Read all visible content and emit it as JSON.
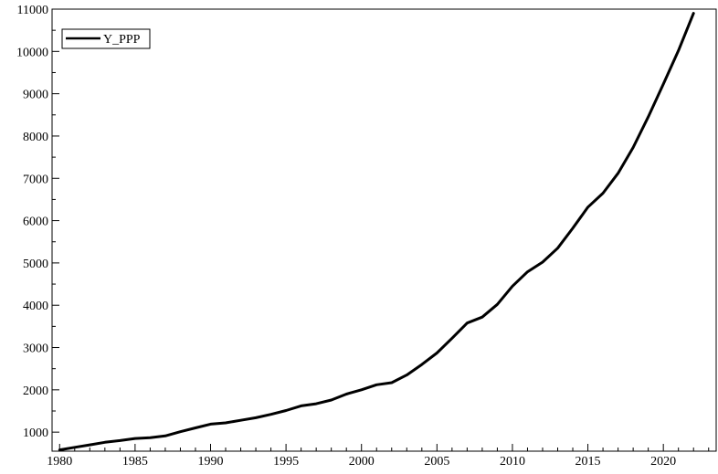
{
  "chart_data": {
    "type": "line",
    "title": "",
    "xlabel": "",
    "ylabel": "",
    "xlim": [
      1979.5,
      2023.5
    ],
    "ylim": [
      550,
      11000
    ],
    "x_ticks": [
      1980,
      1985,
      1990,
      1995,
      2000,
      2005,
      2010,
      2015,
      2020
    ],
    "y_ticks": [
      1000,
      2000,
      3000,
      4000,
      5000,
      6000,
      7000,
      8000,
      9000,
      10000,
      11000
    ],
    "x_tick_labels": [
      "1980",
      "1985",
      "1990",
      "1995",
      "2000",
      "2005",
      "2010",
      "2015",
      "2020"
    ],
    "y_tick_labels": [
      "1000",
      "2000",
      "3000",
      "4000",
      "5000",
      "6000",
      "7000",
      "8000",
      "9000",
      "10000",
      "11000"
    ],
    "grid": false,
    "legend_position": "top-left",
    "line_color": "#000000",
    "series": [
      {
        "name": "Y_PPP",
        "x": [
          1980,
          1981,
          1982,
          1983,
          1984,
          1985,
          1986,
          1987,
          1988,
          1989,
          1990,
          1991,
          1992,
          1993,
          1994,
          1995,
          1996,
          1997,
          1998,
          1999,
          2000,
          2001,
          2002,
          2003,
          2004,
          2005,
          2006,
          2007,
          2008,
          2009,
          2010,
          2011,
          2012,
          2013,
          2014,
          2015,
          2016,
          2017,
          2018,
          2019,
          2020,
          2021,
          2022
        ],
        "y": [
          580,
          640,
          700,
          760,
          800,
          850,
          870,
          910,
          1010,
          1100,
          1190,
          1220,
          1280,
          1340,
          1420,
          1510,
          1620,
          1670,
          1760,
          1900,
          2000,
          2120,
          2170,
          2350,
          2600,
          2870,
          3220,
          3580,
          3720,
          4020,
          4450,
          4790,
          5020,
          5350,
          5820,
          6320,
          6650,
          7120,
          7730,
          8450,
          9230,
          10020,
          10900
        ]
      }
    ]
  }
}
